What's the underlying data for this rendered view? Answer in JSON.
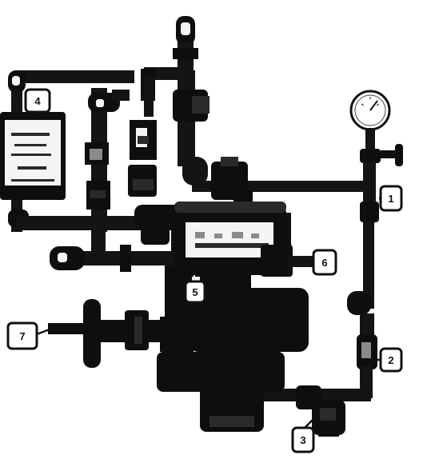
{
  "callouts": {
    "c1": "1",
    "c2": "2",
    "c3": "3",
    "c4": "4",
    "c5": "5",
    "c6": "6",
    "c7": "7"
  },
  "colors": {
    "ink": "#111111",
    "paper": "#ffffff"
  }
}
